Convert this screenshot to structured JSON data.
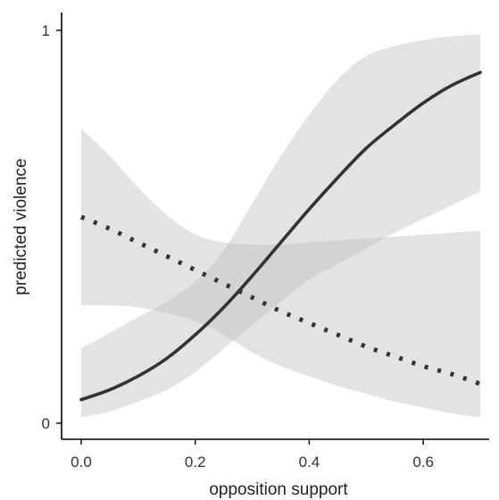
{
  "chart_data": {
    "type": "line",
    "title": "",
    "xlabel": "opposition support",
    "ylabel": "predicted violence",
    "xlim": [
      0.0,
      0.7
    ],
    "ylim": [
      0,
      1
    ],
    "x_ticks": [
      0.0,
      0.2,
      0.4,
      0.6
    ],
    "x_tick_labels": [
      "0.0",
      "0.2",
      "0.4",
      "0.6"
    ],
    "y_ticks": [
      0,
      1
    ],
    "y_tick_labels": [
      "0",
      "1"
    ],
    "grid": false,
    "legend": "none",
    "colors": {
      "line": "#333333",
      "band": "#bdbdbd",
      "axis": "#000000"
    },
    "x": [
      0.0,
      0.05,
      0.1,
      0.15,
      0.2,
      0.25,
      0.3,
      0.35,
      0.4,
      0.45,
      0.5,
      0.55,
      0.6,
      0.65,
      0.7
    ],
    "series": [
      {
        "style": "solid",
        "values": [
          0.06,
          0.085,
          0.12,
          0.165,
          0.225,
          0.295,
          0.375,
          0.46,
          0.545,
          0.625,
          0.7,
          0.76,
          0.815,
          0.86,
          0.893
        ],
        "lower": [
          0.015,
          0.03,
          0.055,
          0.085,
          0.13,
          0.19,
          0.25,
          0.31,
          0.365,
          0.405,
          0.445,
          0.485,
          0.52,
          0.555,
          0.59
        ],
        "upper": [
          0.19,
          0.23,
          0.27,
          0.31,
          0.36,
          0.44,
          0.56,
          0.68,
          0.785,
          0.875,
          0.935,
          0.96,
          0.975,
          0.985,
          0.99
        ]
      },
      {
        "style": "dotted",
        "values": [
          0.525,
          0.495,
          0.46,
          0.425,
          0.39,
          0.355,
          0.32,
          0.285,
          0.255,
          0.225,
          0.195,
          0.17,
          0.145,
          0.125,
          0.1
        ],
        "lower": [
          0.3,
          0.3,
          0.295,
          0.28,
          0.26,
          0.225,
          0.18,
          0.145,
          0.12,
          0.095,
          0.075,
          0.055,
          0.04,
          0.025,
          0.015
        ],
        "upper": [
          0.75,
          0.68,
          0.6,
          0.53,
          0.48,
          0.46,
          0.455,
          0.455,
          0.46,
          0.465,
          0.47,
          0.475,
          0.48,
          0.485,
          0.49
        ]
      }
    ]
  }
}
